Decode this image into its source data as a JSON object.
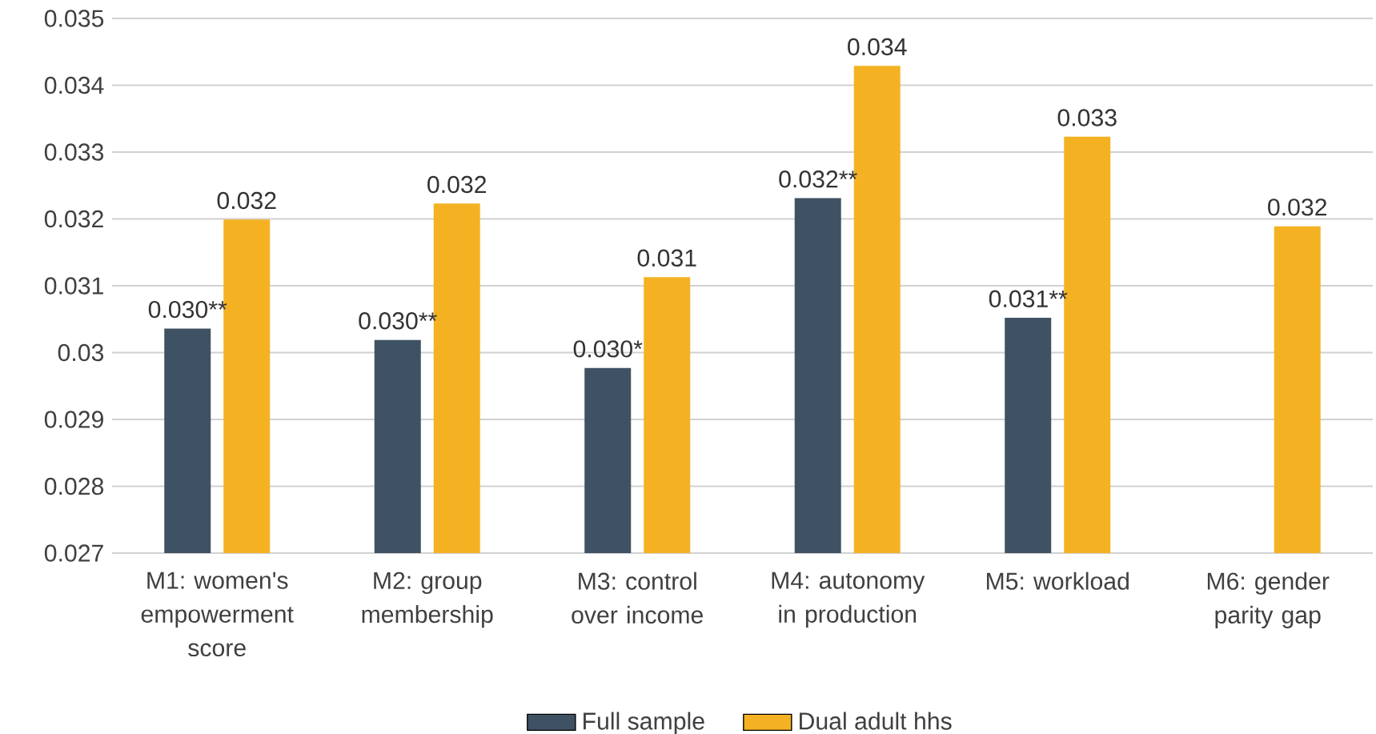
{
  "chart_data": {
    "type": "bar",
    "categories": [
      "M1: women's empowerment score",
      "M2: group membership",
      "M3: control over income",
      "M4: autonomy in production",
      "M5: workload",
      "M6: gender parity gap"
    ],
    "series": [
      {
        "name": "Full sample",
        "color": "#3f5263",
        "values": [
          0.03036,
          0.03019,
          0.02977,
          0.03231,
          0.03052,
          null
        ],
        "value_labels": [
          "0.030**",
          "0.030**",
          "0.030*",
          "0.032**",
          "0.031**",
          null
        ]
      },
      {
        "name": "Dual adult hhs",
        "color": "#f4b223",
        "values": [
          0.03199,
          0.03223,
          0.03113,
          0.03429,
          0.03323,
          0.03189
        ],
        "value_labels": [
          "0.032",
          "0.032",
          "0.031",
          "0.034",
          "0.033",
          "0.032"
        ]
      }
    ],
    "ylim": [
      0.027,
      0.035
    ],
    "yticks": [
      {
        "value": 0.027,
        "label": "0.027"
      },
      {
        "value": 0.028,
        "label": "0.028"
      },
      {
        "value": 0.029,
        "label": "0.029"
      },
      {
        "value": 0.03,
        "label": "0.03"
      },
      {
        "value": 0.031,
        "label": "0.031"
      },
      {
        "value": 0.032,
        "label": "0.032"
      },
      {
        "value": 0.033,
        "label": "0.033"
      },
      {
        "value": 0.034,
        "label": "0.034"
      },
      {
        "value": 0.035,
        "label": "0.035"
      }
    ],
    "grid": "y",
    "legend": "bottom"
  }
}
